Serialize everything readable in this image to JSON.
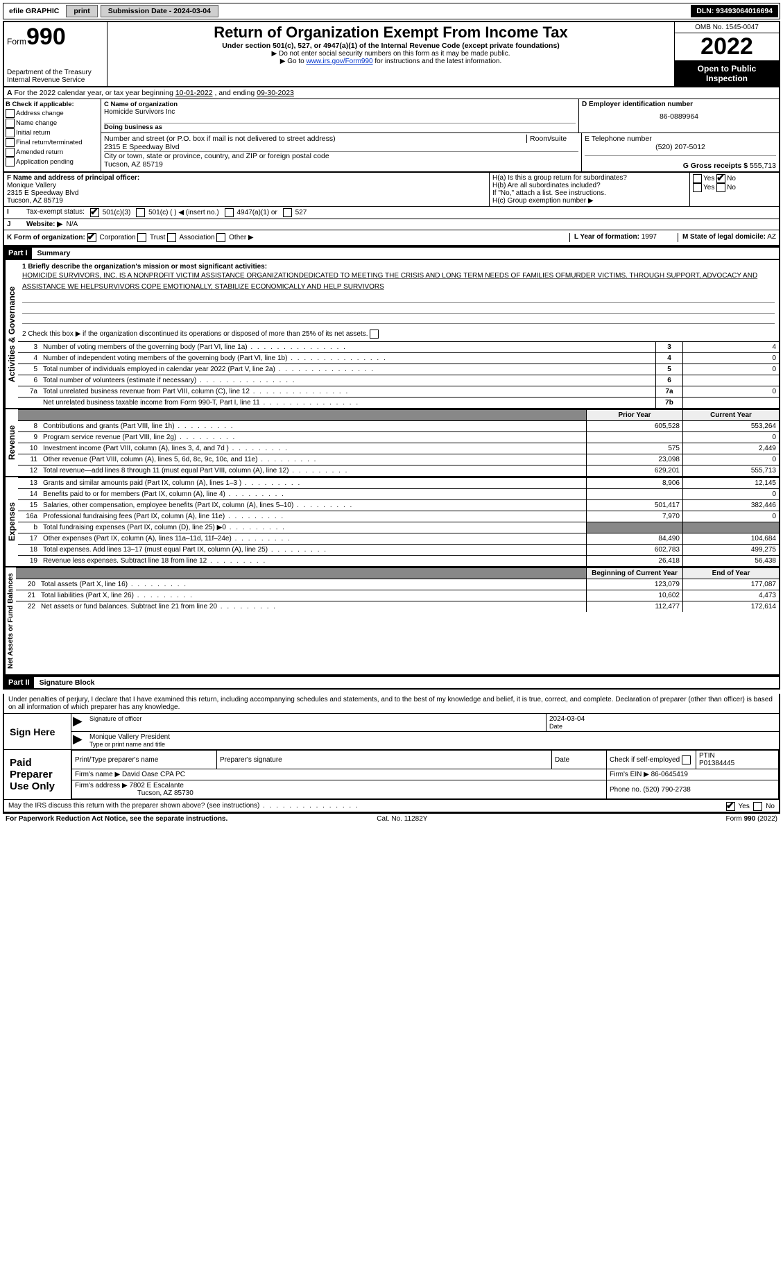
{
  "topbar": {
    "efile": "efile GRAPHIC",
    "print": "print",
    "submission": "Submission Date - 2024-03-04",
    "dln": "DLN: 93493064016694"
  },
  "header": {
    "form_prefix": "Form",
    "form_num": "990",
    "dept1": "Department of the Treasury",
    "dept2": "Internal Revenue Service",
    "title": "Return of Organization Exempt From Income Tax",
    "sub": "Under section 501(c), 527, or 4947(a)(1) of the Internal Revenue Code (except private foundations)",
    "sub2": "▶ Do not enter social security numbers on this form as it may be made public.",
    "sub3_pre": "▶ Go to ",
    "sub3_link": "www.irs.gov/Form990",
    "sub3_post": " for instructions and the latest information.",
    "omb": "OMB No. 1545-0047",
    "year": "2022",
    "open": "Open to Public Inspection"
  },
  "rowA": {
    "text_pre": "For the 2022 calendar year, or tax year beginning ",
    "begin": "10-01-2022",
    "mid": " , and ending ",
    "end": "09-30-2023"
  },
  "colB": {
    "hdr": "B Check if applicable:",
    "opts": [
      "Address change",
      "Name change",
      "Initial return",
      "Final return/terminated",
      "Amended return",
      "Application pending"
    ]
  },
  "colC": {
    "name_lbl": "C Name of organization",
    "name": "Homicide Survivors Inc",
    "dba_lbl": "Doing business as",
    "dba": "",
    "addr_lbl": "Number and street (or P.O. box if mail is not delivered to street address)",
    "room_lbl": "Room/suite",
    "addr": "2315 E Speedway Blvd",
    "city_lbl": "City or town, state or province, country, and ZIP or foreign postal code",
    "city": "Tucson, AZ  85719"
  },
  "colD": {
    "ein_lbl": "D Employer identification number",
    "ein": "86-0889964",
    "tel_lbl": "E Telephone number",
    "tel": "(520) 207-5012",
    "gross_lbl": "G Gross receipts $",
    "gross": "555,713"
  },
  "rowF": {
    "lbl": "F Name and address of principal officer:",
    "name": "Monique Vallery",
    "addr1": "2315 E Speedway Blvd",
    "addr2": "Tucson, AZ  85719"
  },
  "rowH": {
    "ha": "H(a)  Is this a group return for subordinates?",
    "hb": "H(b)  Are all subordinates included?",
    "hb2": "If \"No,\" attach a list. See instructions.",
    "hc": "H(c)  Group exemption number ▶",
    "yes": "Yes",
    "no": "No"
  },
  "rowI": {
    "lbl": "Tax-exempt status:",
    "o1": "501(c)(3)",
    "o2": "501(c) (   ) ◀ (insert no.)",
    "o3": "4947(a)(1) or",
    "o4": "527"
  },
  "rowJ": {
    "lbl": "Website: ▶",
    "val": "N/A"
  },
  "rowK": {
    "lbl": "K Form of organization:",
    "o1": "Corporation",
    "o2": "Trust",
    "o3": "Association",
    "o4": "Other ▶",
    "L_lbl": "L Year of formation:",
    "L_val": "1997",
    "M_lbl": "M State of legal domicile:",
    "M_val": "AZ"
  },
  "part1": {
    "tag": "Part I",
    "title": "Summary",
    "line1_lbl": "1  Briefly describe the organization's mission or most significant activities:",
    "mission": "HOMICIDE SURVIVORS, INC. IS A NONPROFIT VICTIM ASSISTANCE ORGANIZATIONDEDICATED TO MEETING THE CRISIS AND LONG TERM NEEDS OF FAMILIES OFMURDER VICTIMS. THROUGH SUPPORT, ADVOCACY AND ASSISTANCE WE HELPSURVIVORS COPE EMOTIONALLY, STABILIZE ECONOMICALLY AND HELP SURVIVORS",
    "line2": "2  Check this box ▶      if the organization discontinued its operations or disposed of more than 25% of its net assets.",
    "vlabel_ag": "Activities & Governance",
    "vlabel_rev": "Revenue",
    "vlabel_exp": "Expenses",
    "vlabel_net": "Net Assets or Fund Balances",
    "rows_ag": [
      {
        "n": "3",
        "d": "Number of voting members of the governing body (Part VI, line 1a)",
        "box": "3",
        "v": "4"
      },
      {
        "n": "4",
        "d": "Number of independent voting members of the governing body (Part VI, line 1b)",
        "box": "4",
        "v": "0"
      },
      {
        "n": "5",
        "d": "Total number of individuals employed in calendar year 2022 (Part V, line 2a)",
        "box": "5",
        "v": "0"
      },
      {
        "n": "6",
        "d": "Total number of volunteers (estimate if necessary)",
        "box": "6",
        "v": ""
      },
      {
        "n": "7a",
        "d": "Total unrelated business revenue from Part VIII, column (C), line 12",
        "box": "7a",
        "v": "0"
      },
      {
        "n": "",
        "d": "Net unrelated business taxable income from Form 990-T, Part I, line 11",
        "box": "7b",
        "v": ""
      }
    ],
    "hdr_prior": "Prior Year",
    "hdr_curr": "Current Year",
    "rows_rev": [
      {
        "n": "8",
        "d": "Contributions and grants (Part VIII, line 1h)",
        "p": "605,528",
        "c": "553,264"
      },
      {
        "n": "9",
        "d": "Program service revenue (Part VIII, line 2g)",
        "p": "",
        "c": "0"
      },
      {
        "n": "10",
        "d": "Investment income (Part VIII, column (A), lines 3, 4, and 7d )",
        "p": "575",
        "c": "2,449"
      },
      {
        "n": "11",
        "d": "Other revenue (Part VIII, column (A), lines 5, 6d, 8c, 9c, 10c, and 11e)",
        "p": "23,098",
        "c": "0"
      },
      {
        "n": "12",
        "d": "Total revenue—add lines 8 through 11 (must equal Part VIII, column (A), line 12)",
        "p": "629,201",
        "c": "555,713"
      }
    ],
    "rows_exp": [
      {
        "n": "13",
        "d": "Grants and similar amounts paid (Part IX, column (A), lines 1–3 )",
        "p": "8,906",
        "c": "12,145"
      },
      {
        "n": "14",
        "d": "Benefits paid to or for members (Part IX, column (A), line 4)",
        "p": "",
        "c": "0"
      },
      {
        "n": "15",
        "d": "Salaries, other compensation, employee benefits (Part IX, column (A), lines 5–10)",
        "p": "501,417",
        "c": "382,446"
      },
      {
        "n": "16a",
        "d": "Professional fundraising fees (Part IX, column (A), line 11e)",
        "p": "7,970",
        "c": "0"
      },
      {
        "n": "b",
        "d": "Total fundraising expenses (Part IX, column (D), line 25) ▶0",
        "p": "SHADE",
        "c": "SHADE"
      },
      {
        "n": "17",
        "d": "Other expenses (Part IX, column (A), lines 11a–11d, 11f–24e)",
        "p": "84,490",
        "c": "104,684"
      },
      {
        "n": "18",
        "d": "Total expenses. Add lines 13–17 (must equal Part IX, column (A), line 25)",
        "p": "602,783",
        "c": "499,275"
      },
      {
        "n": "19",
        "d": "Revenue less expenses. Subtract line 18 from line 12",
        "p": "26,418",
        "c": "56,438"
      }
    ],
    "hdr_beg": "Beginning of Current Year",
    "hdr_end": "End of Year",
    "rows_net": [
      {
        "n": "20",
        "d": "Total assets (Part X, line 16)",
        "p": "123,079",
        "c": "177,087"
      },
      {
        "n": "21",
        "d": "Total liabilities (Part X, line 26)",
        "p": "10,602",
        "c": "4,473"
      },
      {
        "n": "22",
        "d": "Net assets or fund balances. Subtract line 21 from line 20",
        "p": "112,477",
        "c": "172,614"
      }
    ]
  },
  "part2": {
    "tag": "Part II",
    "title": "Signature Block",
    "intro": "Under penalties of perjury, I declare that I have examined this return, including accompanying schedules and statements, and to the best of my knowledge and belief, it is true, correct, and complete. Declaration of preparer (other than officer) is based on all information of which preparer has any knowledge.",
    "sign_here": "Sign Here",
    "sig_officer_cap": "Signature of officer",
    "date_cap": "Date",
    "date_val": "2024-03-04",
    "name_title": "Monique Vallery  President",
    "name_title_cap": "Type or print name and title",
    "paid": "Paid Preparer Use Only",
    "pp_name_lbl": "Print/Type preparer's name",
    "pp_name": "",
    "pp_sig_lbl": "Preparer's signature",
    "pp_date_lbl": "Date",
    "pp_ck_lbl": "Check        if self-employed",
    "ptin_lbl": "PTIN",
    "ptin": "P01384445",
    "firm_name_lbl": "Firm's name   ▶",
    "firm_name": "David Oase CPA PC",
    "firm_ein_lbl": "Firm's EIN ▶",
    "firm_ein": "86-0645419",
    "firm_addr_lbl": "Firm's address ▶",
    "firm_addr1": "7802 E Escalante",
    "firm_addr2": "Tucson, AZ  85730",
    "firm_phone_lbl": "Phone no.",
    "firm_phone": "(520) 790-2738",
    "discuss": "May the IRS discuss this return with the preparer shown above? (see instructions)",
    "yes": "Yes",
    "no": "No"
  },
  "footer": {
    "left": "For Paperwork Reduction Act Notice, see the separate instructions.",
    "mid": "Cat. No. 11282Y",
    "right": "Form 990 (2022)"
  }
}
